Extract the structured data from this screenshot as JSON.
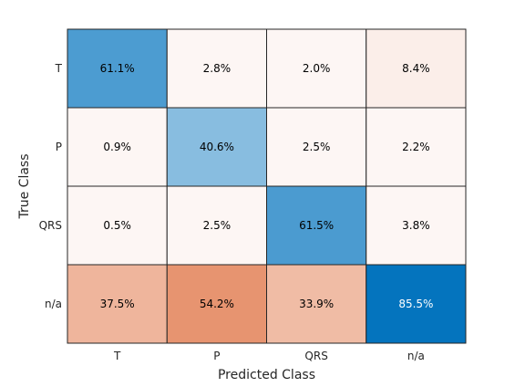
{
  "chart_data": {
    "type": "heatmap",
    "xlabel": "Predicted Class",
    "ylabel": "True Class",
    "x_categories": [
      "T",
      "P",
      "QRS",
      "n/a"
    ],
    "y_categories": [
      "T",
      "P",
      "QRS",
      "n/a"
    ],
    "values": [
      [
        61.1,
        2.8,
        2.0,
        8.4
      ],
      [
        0.9,
        40.6,
        2.5,
        2.2
      ],
      [
        0.5,
        2.5,
        61.5,
        3.8
      ],
      [
        37.5,
        54.2,
        33.9,
        85.5
      ]
    ],
    "cell_labels": [
      [
        "61.1%",
        "2.8%",
        "2.0%",
        "8.4%"
      ],
      [
        "0.9%",
        "40.6%",
        "2.5%",
        "2.2%"
      ],
      [
        "0.5%",
        "2.5%",
        "61.5%",
        "3.8%"
      ],
      [
        "37.5%",
        "54.2%",
        "33.9%",
        "85.5%"
      ]
    ],
    "colors": {
      "diagonal": "#0072BD",
      "off_diagonal": "#D95319",
      "background": "#ffffff",
      "grid_line": "#262626"
    }
  }
}
